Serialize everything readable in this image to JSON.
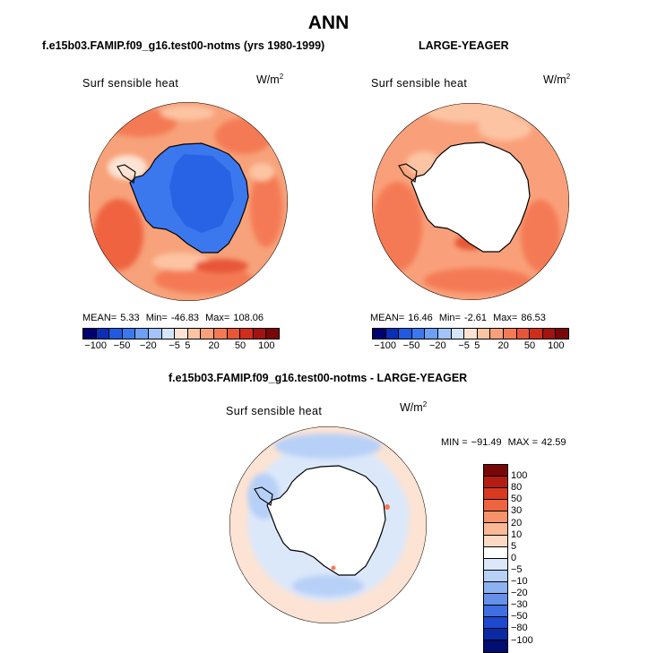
{
  "title": "ANN",
  "panels": [
    {
      "case_title": "f.e15b03.FAMIP.f09_g16.test00-notms (yrs 1980-1999)",
      "field": "Surf sensible heat",
      "units_base": "W/m",
      "units_exp": "2",
      "stats": {
        "mean_label": "MEAN=",
        "mean": "5.33",
        "min_label": "Min=",
        "min": "-46.83",
        "max_label": "Max=",
        "max": "108.06"
      }
    },
    {
      "case_title": "LARGE-YEAGER",
      "field": "Surf sensible heat",
      "units_base": "W/m",
      "units_exp": "2",
      "stats": {
        "mean_label": "MEAN=",
        "mean": "16.46",
        "min_label": "Min=",
        "min": "-2.61",
        "max_label": "Max=",
        "max": "86.53"
      }
    }
  ],
  "abs_colorbar": {
    "colors": [
      "#00006e",
      "#0a2eb4",
      "#1f5ae0",
      "#3b78ee",
      "#6d9ff5",
      "#a3c4fa",
      "#d5e5fb",
      "#fde3d3",
      "#fcc4a3",
      "#f9a07a",
      "#f47a55",
      "#e75638",
      "#d02d1d",
      "#a31410",
      "#7a0707"
    ],
    "ticks": [
      "−100",
      "−50",
      "−20",
      "−5",
      "5",
      "20",
      "50",
      "100"
    ]
  },
  "diff": {
    "case_title": "f.e15b03.FAMIP.f09_g16.test00-notms - LARGE-YEAGER",
    "field": "Surf sensible heat",
    "units_base": "W/m",
    "units_exp": "2",
    "stats": {
      "min_label": "MIN =",
      "min": "−91.49",
      "max_label": "MAX =",
      "max": "42.59"
    },
    "colorbar": {
      "colors": [
        "#7a0707",
        "#b41e12",
        "#d9391f",
        "#ef6440",
        "#f6936b",
        "#fbb896",
        "#fdd9c4",
        "#ffffff",
        "#dbe8fa",
        "#b7d0f7",
        "#8db2f1",
        "#6691ea",
        "#3f6fe0",
        "#1d49cf",
        "#0a2aa6",
        "#000e70"
      ],
      "labels": [
        "100",
        "80",
        "50",
        "30",
        "20",
        "10",
        "5",
        "0",
        "−5",
        "−10",
        "−20",
        "−30",
        "−50",
        "−80",
        "−100"
      ]
    }
  },
  "colors": {
    "continent": "#ffffff",
    "coastline": "#000000",
    "frame": "#000000"
  }
}
